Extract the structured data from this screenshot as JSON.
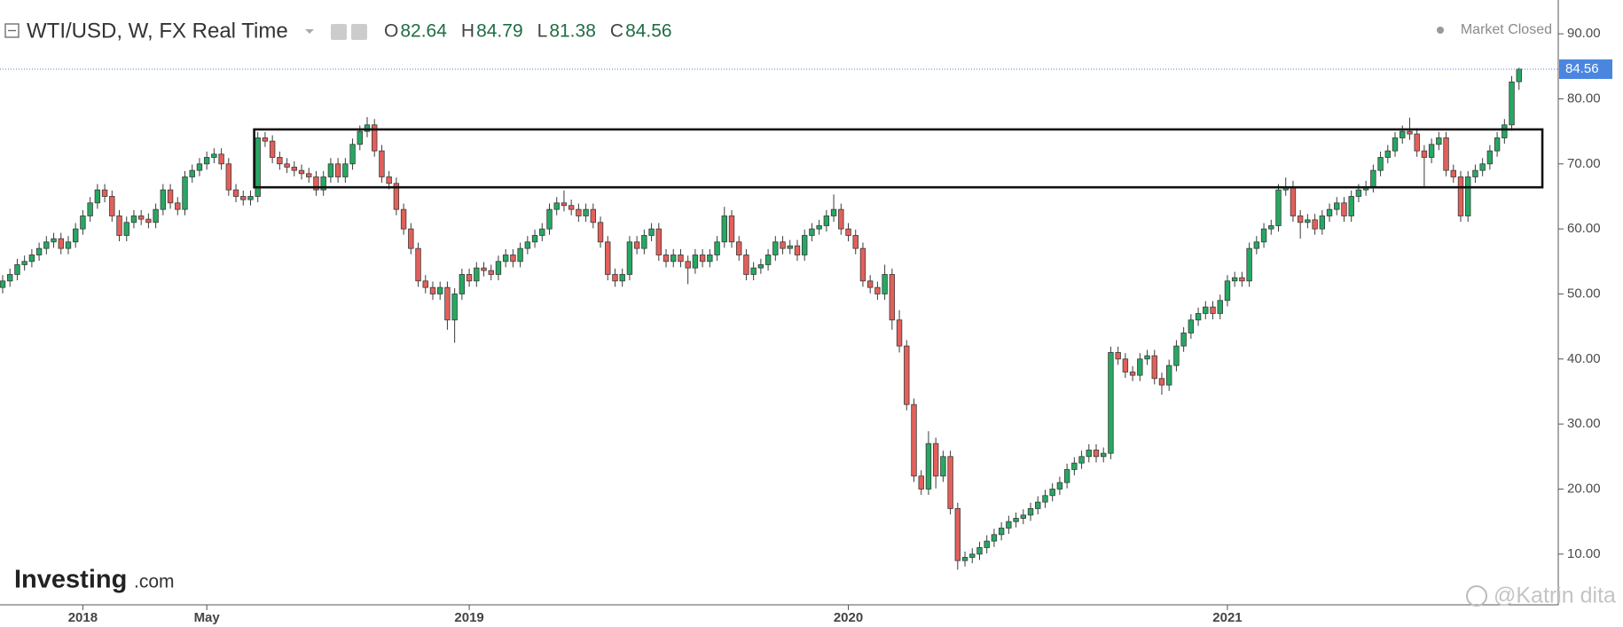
{
  "chart_data": {
    "type": "candlestick",
    "title": "WTI/USD, W, FX Real Time",
    "ohlc_labels": [
      "O",
      "H",
      "L",
      "C"
    ],
    "status": "Market Closed",
    "up_color": "#26a862",
    "down_color": "#e3605a",
    "outline_color": "#3a3a3a",
    "ylim": [
      2.2,
      95.2
    ],
    "yticks": [
      {
        "value": 10,
        "label": "10.00"
      },
      {
        "value": 20,
        "label": "20.00"
      },
      {
        "value": 30,
        "label": "30.00"
      },
      {
        "value": 40,
        "label": "40.00"
      },
      {
        "value": 50,
        "label": "50.00"
      },
      {
        "value": 60,
        "label": "60.00"
      },
      {
        "value": 70,
        "label": "70.00"
      },
      {
        "value": 80,
        "label": "80.00"
      },
      {
        "value": 90,
        "label": "90.00"
      }
    ],
    "last_price_line": true,
    "annotation_box": {
      "x": [
        34.5,
        211.2
      ],
      "y": [
        66.4,
        75.3
      ]
    },
    "categories": [
      null,
      null,
      null,
      null,
      null,
      null,
      null,
      null,
      null,
      null,
      null,
      "2018",
      null,
      null,
      null,
      null,
      null,
      null,
      null,
      null,
      null,
      null,
      null,
      null,
      null,
      null,
      null,
      null,
      "May",
      null,
      null,
      null,
      null,
      null,
      null,
      null,
      null,
      null,
      null,
      null,
      null,
      null,
      null,
      null,
      null,
      null,
      null,
      null,
      null,
      null,
      null,
      null,
      null,
      null,
      null,
      null,
      null,
      null,
      null,
      null,
      null,
      null,
      null,
      null,
      "2019",
      null,
      null,
      null,
      null,
      null,
      null,
      null,
      null,
      null,
      null,
      null,
      null,
      null,
      null,
      null,
      null,
      null,
      null,
      null,
      null,
      null,
      null,
      null,
      null,
      null,
      null,
      null,
      null,
      null,
      null,
      null,
      null,
      null,
      null,
      null,
      null,
      null,
      null,
      null,
      null,
      null,
      null,
      null,
      null,
      null,
      null,
      null,
      null,
      null,
      null,
      null,
      "2020",
      null,
      null,
      null,
      null,
      null,
      null,
      null,
      null,
      null,
      null,
      null,
      null,
      null,
      null,
      null,
      null,
      null,
      null,
      null,
      null,
      null,
      null,
      null,
      null,
      null,
      null,
      null,
      null,
      null,
      null,
      null,
      null,
      null,
      null,
      null,
      null,
      null,
      null,
      null,
      null,
      null,
      null,
      null,
      null,
      null,
      null,
      null,
      null,
      null,
      null,
      null,
      "2021",
      null,
      null,
      null,
      null,
      null,
      null,
      null,
      null,
      null,
      null,
      null,
      null,
      null,
      null,
      null,
      null,
      null,
      null,
      null,
      null,
      null,
      null,
      null,
      null,
      null,
      null,
      null,
      null,
      null,
      null,
      null,
      null,
      null,
      null,
      null,
      null,
      null,
      null,
      null,
      null
    ],
    "ohlc": [
      [
        51,
        52.9,
        50.1,
        52
      ],
      [
        52,
        53.9,
        51.1,
        53
      ],
      [
        53,
        55.4,
        52.1,
        54.5
      ],
      [
        54.5,
        55.9,
        53.6,
        55
      ],
      [
        55,
        56.9,
        54.1,
        56
      ],
      [
        56,
        57.9,
        55.1,
        57
      ],
      [
        57,
        58.9,
        56.1,
        58
      ],
      [
        58,
        59.4,
        57.1,
        58.5
      ],
      [
        58.5,
        59.4,
        56.1,
        57
      ],
      [
        57,
        58.9,
        56.1,
        58
      ],
      [
        58,
        60.9,
        57.1,
        60
      ],
      [
        60,
        62.9,
        59.1,
        62
      ],
      [
        62,
        64.9,
        61.1,
        64
      ],
      [
        64,
        66.9,
        63.1,
        66
      ],
      [
        66,
        66.9,
        64.1,
        65
      ],
      [
        65,
        65.9,
        61.1,
        62
      ],
      [
        62,
        62.9,
        58.1,
        59
      ],
      [
        59,
        61.9,
        58.1,
        61
      ],
      [
        61,
        62.9,
        60.1,
        62
      ],
      [
        62,
        62.9,
        60.6,
        61.5
      ],
      [
        61.5,
        62.4,
        60.1,
        61
      ],
      [
        61,
        63.9,
        60.1,
        63
      ],
      [
        63,
        66.9,
        62.1,
        66
      ],
      [
        66,
        66.9,
        63.1,
        64
      ],
      [
        64,
        64.9,
        62.1,
        63
      ],
      [
        63,
        68.9,
        62.1,
        68
      ],
      [
        68,
        69.9,
        67.1,
        69
      ],
      [
        69,
        70.9,
        68.1,
        70
      ],
      [
        70,
        71.9,
        69.1,
        71
      ],
      [
        71,
        72.4,
        70.1,
        71.5
      ],
      [
        71.5,
        72.4,
        69.1,
        70
      ],
      [
        70,
        70.9,
        65.1,
        66
      ],
      [
        66,
        66.9,
        64.1,
        65
      ],
      [
        65,
        65.9,
        63.6,
        64.5
      ],
      [
        64.5,
        65.9,
        63.6,
        65
      ],
      [
        65,
        74.9,
        64.1,
        74
      ],
      [
        74,
        74.9,
        72.6,
        73.5
      ],
      [
        73.5,
        74.4,
        70.1,
        71
      ],
      [
        71,
        71.9,
        69.1,
        70
      ],
      [
        70,
        70.9,
        68.6,
        69.5
      ],
      [
        69.5,
        70.4,
        68.1,
        69
      ],
      [
        69,
        69.9,
        67.6,
        68.5
      ],
      [
        68.5,
        69.4,
        67.1,
        68
      ],
      [
        68,
        68.9,
        65.1,
        66
      ],
      [
        66,
        68.9,
        65.1,
        68
      ],
      [
        68,
        70.9,
        67.1,
        70
      ],
      [
        70,
        70.9,
        67.1,
        68
      ],
      [
        68,
        70.9,
        67.1,
        70
      ],
      [
        70,
        73.9,
        69.1,
        73
      ],
      [
        73,
        75.9,
        72.1,
        75
      ],
      [
        75,
        77.2,
        74.1,
        76
      ],
      [
        76,
        76.9,
        71.1,
        72
      ],
      [
        72,
        72.9,
        67.1,
        68
      ],
      [
        68,
        68.9,
        66.1,
        67
      ],
      [
        67,
        67.9,
        62.1,
        63
      ],
      [
        63,
        63.9,
        59.1,
        60
      ],
      [
        60,
        60.9,
        56.1,
        57
      ],
      [
        57,
        57.9,
        51.1,
        52
      ],
      [
        52,
        52.9,
        50.1,
        51
      ],
      [
        51,
        51.9,
        49.1,
        50
      ],
      [
        50,
        51.9,
        49.1,
        51
      ],
      [
        51,
        51.9,
        44.5,
        46
      ],
      [
        46,
        50.9,
        42.5,
        50
      ],
      [
        50,
        53.9,
        49.1,
        53
      ],
      [
        53,
        53.9,
        51.1,
        52
      ],
      [
        52,
        54.9,
        51.1,
        54
      ],
      [
        54,
        54.9,
        52.7,
        53.6
      ],
      [
        53.6,
        54.5,
        52.1,
        53
      ],
      [
        53,
        55.9,
        52.1,
        55
      ],
      [
        55,
        56.9,
        54.1,
        56
      ],
      [
        56,
        56.9,
        54.1,
        55
      ],
      [
        55,
        57.9,
        54.1,
        57
      ],
      [
        57,
        58.9,
        56.1,
        58
      ],
      [
        58,
        59.9,
        57.1,
        59
      ],
      [
        59,
        60.9,
        58.1,
        60
      ],
      [
        60,
        63.9,
        59.1,
        63
      ],
      [
        63,
        64.9,
        62.1,
        64
      ],
      [
        64,
        65.9,
        62.7,
        63.6
      ],
      [
        63.6,
        64.5,
        62.1,
        63
      ],
      [
        63,
        63.9,
        61.1,
        62
      ],
      [
        62,
        63.9,
        61.1,
        63
      ],
      [
        63,
        63.9,
        60.1,
        61
      ],
      [
        61,
        61.9,
        57.1,
        58
      ],
      [
        58,
        58.9,
        52.1,
        53
      ],
      [
        53,
        53.9,
        51.1,
        52
      ],
      [
        52,
        53.9,
        51.1,
        53
      ],
      [
        53,
        58.9,
        52.1,
        58
      ],
      [
        58,
        58.9,
        56.1,
        57
      ],
      [
        57,
        59.9,
        56.1,
        59
      ],
      [
        59,
        60.9,
        58.1,
        60
      ],
      [
        60,
        60.9,
        55.1,
        56
      ],
      [
        56,
        56.9,
        54.1,
        55
      ],
      [
        55,
        56.9,
        54.1,
        56
      ],
      [
        56,
        56.9,
        54.1,
        55
      ],
      [
        55,
        55.9,
        51.5,
        54
      ],
      [
        54,
        56.9,
        53.1,
        56
      ],
      [
        56,
        56.9,
        54.1,
        55
      ],
      [
        55,
        56.9,
        54.1,
        56
      ],
      [
        56,
        58.9,
        55.1,
        58
      ],
      [
        58,
        63.4,
        57.1,
        62
      ],
      [
        62,
        62.9,
        57.1,
        58
      ],
      [
        58,
        58.9,
        55.1,
        56
      ],
      [
        56,
        56.9,
        52.1,
        53
      ],
      [
        53,
        54.9,
        52.1,
        54
      ],
      [
        54,
        55.4,
        53.1,
        54.5
      ],
      [
        54.5,
        56.9,
        53.6,
        56
      ],
      [
        56,
        58.9,
        55.1,
        58
      ],
      [
        58,
        58.9,
        56.1,
        57
      ],
      [
        57,
        58.3,
        56.1,
        57.4
      ],
      [
        57.4,
        58.3,
        55.1,
        56
      ],
      [
        56,
        59.9,
        55.1,
        59
      ],
      [
        59,
        60.9,
        58.1,
        60
      ],
      [
        60,
        61.4,
        59.1,
        60.5
      ],
      [
        60.5,
        62.9,
        59.6,
        62
      ],
      [
        62,
        65.3,
        61.1,
        63
      ],
      [
        63,
        63.9,
        59.1,
        60
      ],
      [
        60,
        60.9,
        58.1,
        59
      ],
      [
        59,
        59.9,
        56.1,
        57
      ],
      [
        57,
        57.9,
        51.1,
        52
      ],
      [
        52,
        52.9,
        50.1,
        51
      ],
      [
        51,
        51.9,
        49.1,
        50
      ],
      [
        50,
        54.5,
        49.1,
        53
      ],
      [
        53,
        53.9,
        44.5,
        46
      ],
      [
        46,
        47.5,
        41,
        42
      ],
      [
        42,
        42.9,
        32.1,
        33
      ],
      [
        33,
        33.9,
        21.1,
        22
      ],
      [
        22,
        22.9,
        19.1,
        20
      ],
      [
        20,
        28.9,
        19.1,
        27
      ],
      [
        27,
        27.9,
        20.1,
        22
      ],
      [
        22,
        25.9,
        21.1,
        25
      ],
      [
        25,
        25.9,
        16.1,
        17
      ],
      [
        17,
        17.9,
        7.6,
        9
      ],
      [
        9,
        10.4,
        8.1,
        9.5
      ],
      [
        9.5,
        10.9,
        8.6,
        10
      ],
      [
        10,
        11.9,
        9.1,
        11
      ],
      [
        11,
        12.9,
        10.1,
        12
      ],
      [
        12,
        13.9,
        11.1,
        13
      ],
      [
        13,
        14.9,
        12.1,
        14
      ],
      [
        14,
        15.9,
        13.1,
        15
      ],
      [
        15,
        16.4,
        14.1,
        15.5
      ],
      [
        15.5,
        16.9,
        14.6,
        16
      ],
      [
        16,
        17.9,
        15.1,
        17
      ],
      [
        17,
        18.9,
        16.1,
        18
      ],
      [
        18,
        19.9,
        17.1,
        19
      ],
      [
        19,
        20.9,
        18.1,
        20
      ],
      [
        20,
        21.9,
        19.1,
        21
      ],
      [
        21,
        23.9,
        20.1,
        23
      ],
      [
        23,
        24.9,
        22.1,
        24
      ],
      [
        24,
        25.9,
        23.1,
        25
      ],
      [
        25,
        26.9,
        24.1,
        26
      ],
      [
        26,
        26.9,
        24.1,
        25
      ],
      [
        25,
        26.4,
        24.1,
        25.5
      ],
      [
        25.5,
        41.9,
        24.6,
        41
      ],
      [
        41,
        41.9,
        39.1,
        40
      ],
      [
        40,
        40.9,
        37.1,
        38
      ],
      [
        38,
        38.9,
        36.6,
        37.5
      ],
      [
        37.5,
        40.9,
        36.6,
        40
      ],
      [
        40,
        41.4,
        39.1,
        40.5
      ],
      [
        40.5,
        41.4,
        36.1,
        37
      ],
      [
        37,
        37.9,
        34.5,
        36
      ],
      [
        36,
        39.9,
        35.1,
        39
      ],
      [
        39,
        42.9,
        38.1,
        42
      ],
      [
        42,
        44.9,
        41.1,
        44
      ],
      [
        44,
        46.9,
        43.1,
        46
      ],
      [
        46,
        47.9,
        45.1,
        47
      ],
      [
        47,
        48.9,
        46.1,
        48
      ],
      [
        48,
        48.9,
        46.1,
        47
      ],
      [
        47,
        49.9,
        46.1,
        49
      ],
      [
        49,
        52.9,
        48.1,
        52
      ],
      [
        52,
        53.4,
        51.1,
        52.5
      ],
      [
        52.5,
        53.4,
        51.1,
        52
      ],
      [
        52,
        57.9,
        51.1,
        57
      ],
      [
        57,
        58.9,
        56.1,
        58
      ],
      [
        58,
        60.9,
        57.1,
        60
      ],
      [
        60,
        61.4,
        59.1,
        60.5
      ],
      [
        60.5,
        66.9,
        59.6,
        66
      ],
      [
        66,
        67.9,
        65.1,
        66.5
      ],
      [
        66.5,
        67.4,
        61.1,
        62
      ],
      [
        62,
        62.9,
        58.5,
        61
      ],
      [
        61,
        62.3,
        60.1,
        61.4
      ],
      [
        61.4,
        62.3,
        59.1,
        60
      ],
      [
        60,
        62.9,
        59.1,
        62
      ],
      [
        62,
        63.9,
        61.1,
        63
      ],
      [
        63,
        64.9,
        62.1,
        64
      ],
      [
        64,
        64.9,
        61.1,
        62
      ],
      [
        62,
        65.9,
        61.1,
        65
      ],
      [
        65,
        66.9,
        64.1,
        66
      ],
      [
        66,
        67.4,
        65.1,
        66.5
      ],
      [
        66.5,
        69.9,
        65.6,
        69
      ],
      [
        69,
        71.9,
        68.1,
        71
      ],
      [
        71,
        72.9,
        70.1,
        72
      ],
      [
        72,
        74.9,
        71.1,
        74
      ],
      [
        74,
        75.9,
        73.1,
        75
      ],
      [
        75,
        77.1,
        73.7,
        74.6
      ],
      [
        74.6,
        75.5,
        71.1,
        72
      ],
      [
        72,
        72.9,
        66.5,
        71
      ],
      [
        71,
        73.9,
        70.1,
        73
      ],
      [
        73,
        74.9,
        72.1,
        74
      ],
      [
        74,
        74.9,
        68.1,
        69
      ],
      [
        69,
        69.9,
        67.1,
        68
      ],
      [
        68,
        68.9,
        61.1,
        62
      ],
      [
        62,
        68.9,
        61.1,
        68
      ],
      [
        68,
        69.9,
        67.1,
        69
      ],
      [
        69,
        70.9,
        68.1,
        70
      ],
      [
        70,
        72.9,
        69.1,
        72
      ],
      [
        72,
        74.9,
        71.1,
        74
      ],
      [
        74,
        76.9,
        73.1,
        76
      ],
      [
        76,
        83.5,
        75.1,
        82.6
      ],
      [
        82.64,
        84.79,
        81.38,
        84.56
      ]
    ]
  },
  "branding": {
    "logo": "Investing",
    "logo_suffix": ".com",
    "watermark": "@Katrin dita"
  }
}
